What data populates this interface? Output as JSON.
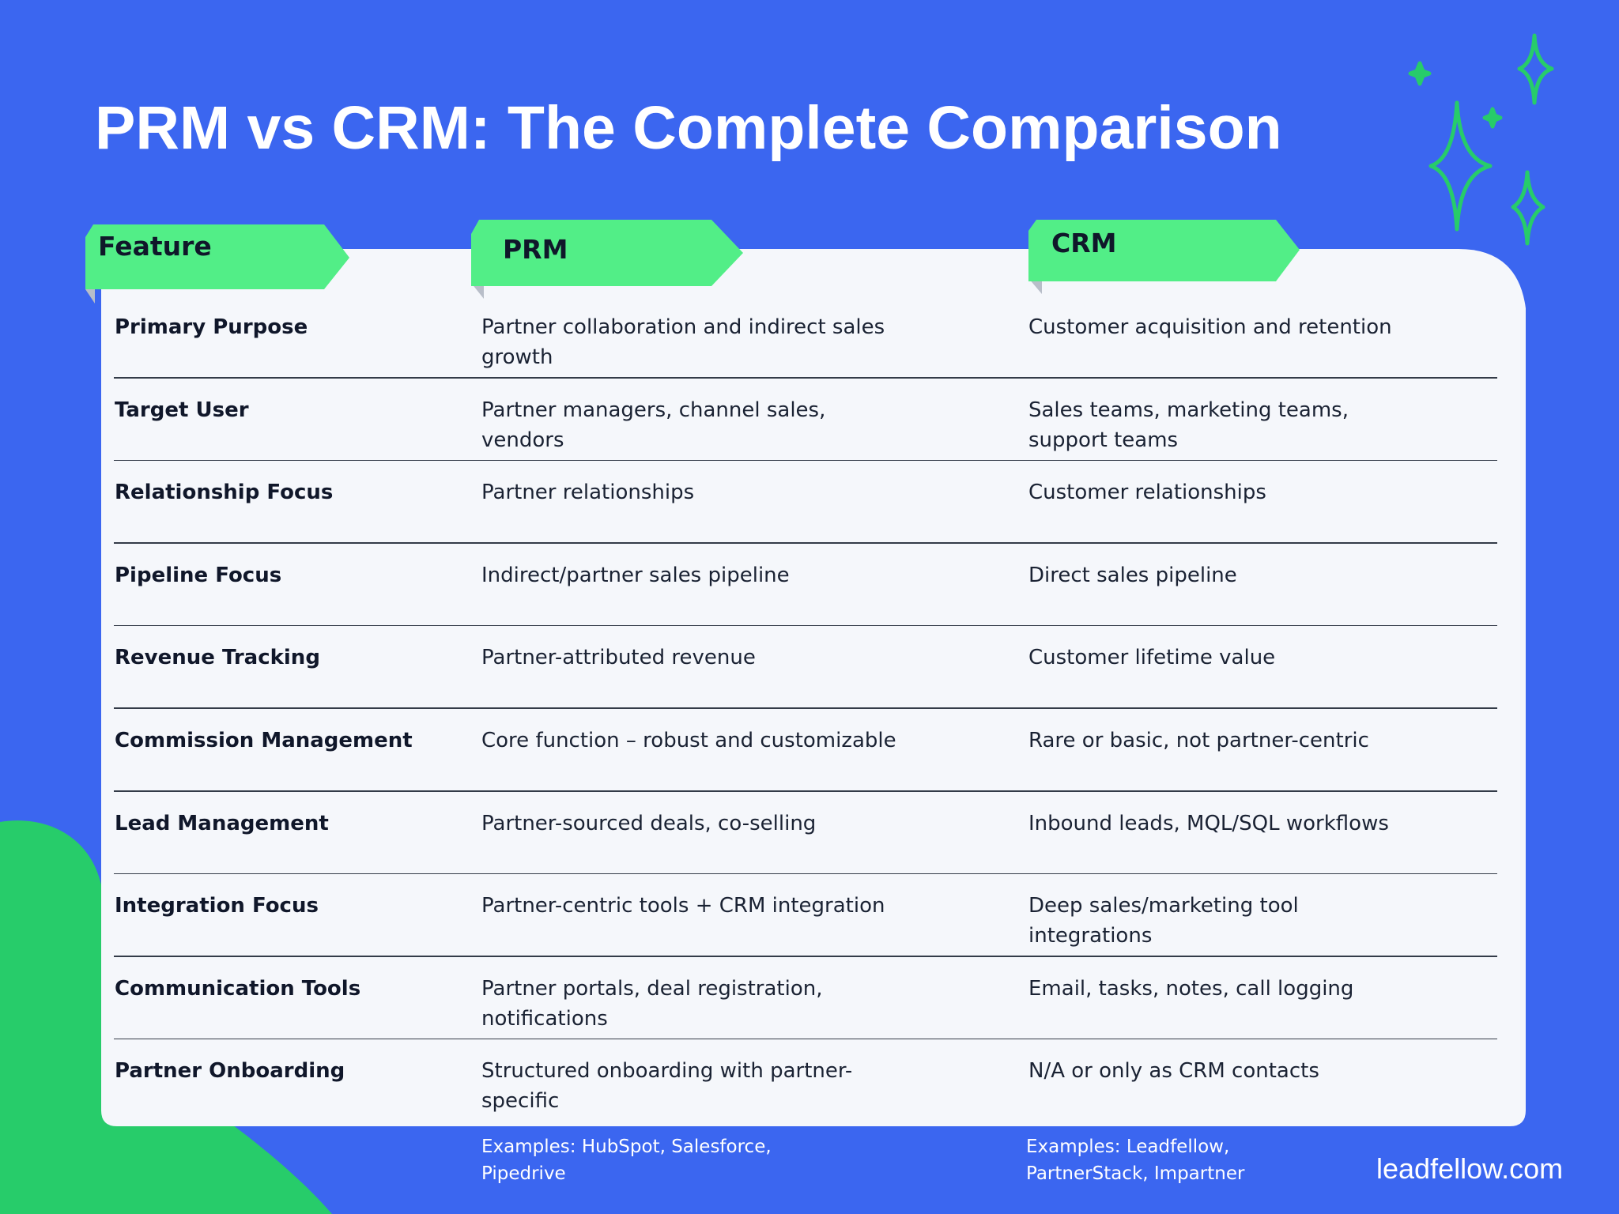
{
  "title": "PRM vs CRM: The Complete Comparison",
  "table": {
    "headers": [
      "Feature",
      "PRM",
      "CRM"
    ],
    "rows": [
      [
        "Primary Purpose",
        "Partner collaboration and indirect sales growth",
        "Customer acquisition and retention"
      ],
      [
        "Target User",
        "Partner managers, channel sales, vendors",
        "Sales teams, marketing teams, support teams"
      ],
      [
        "Relationship Focus",
        "Partner relationships",
        "Customer relationships"
      ],
      [
        "Pipeline Focus",
        "Indirect/partner sales pipeline",
        "Direct sales pipeline"
      ],
      [
        "Revenue Tracking",
        "Partner-attributed revenue",
        "Customer lifetime value"
      ],
      [
        "Commission Management",
        "Core function – robust and customizable",
        "Rare or basic, not partner-centric"
      ],
      [
        "Lead Management",
        "Partner-sourced deals, co-selling",
        "Inbound leads, MQL/SQL workflows"
      ],
      [
        "Integration Focus",
        "Partner-centric tools + CRM integration",
        "Deep sales/marketing tool integrations"
      ],
      [
        "Communication Tools",
        "Partner portals, deal registration, notifications",
        "Email, tasks, notes, call logging"
      ],
      [
        "Partner Onboarding",
        "Structured onboarding with partner-specific",
        "N/A or only as CRM contacts"
      ]
    ]
  },
  "footer": {
    "prm_examples": "Examples: HubSpot, Salesforce, Pipedrive",
    "crm_examples": "Examples: Leadfellow, PartnerStack, Impartner",
    "brand": "leadfellow.com"
  }
}
